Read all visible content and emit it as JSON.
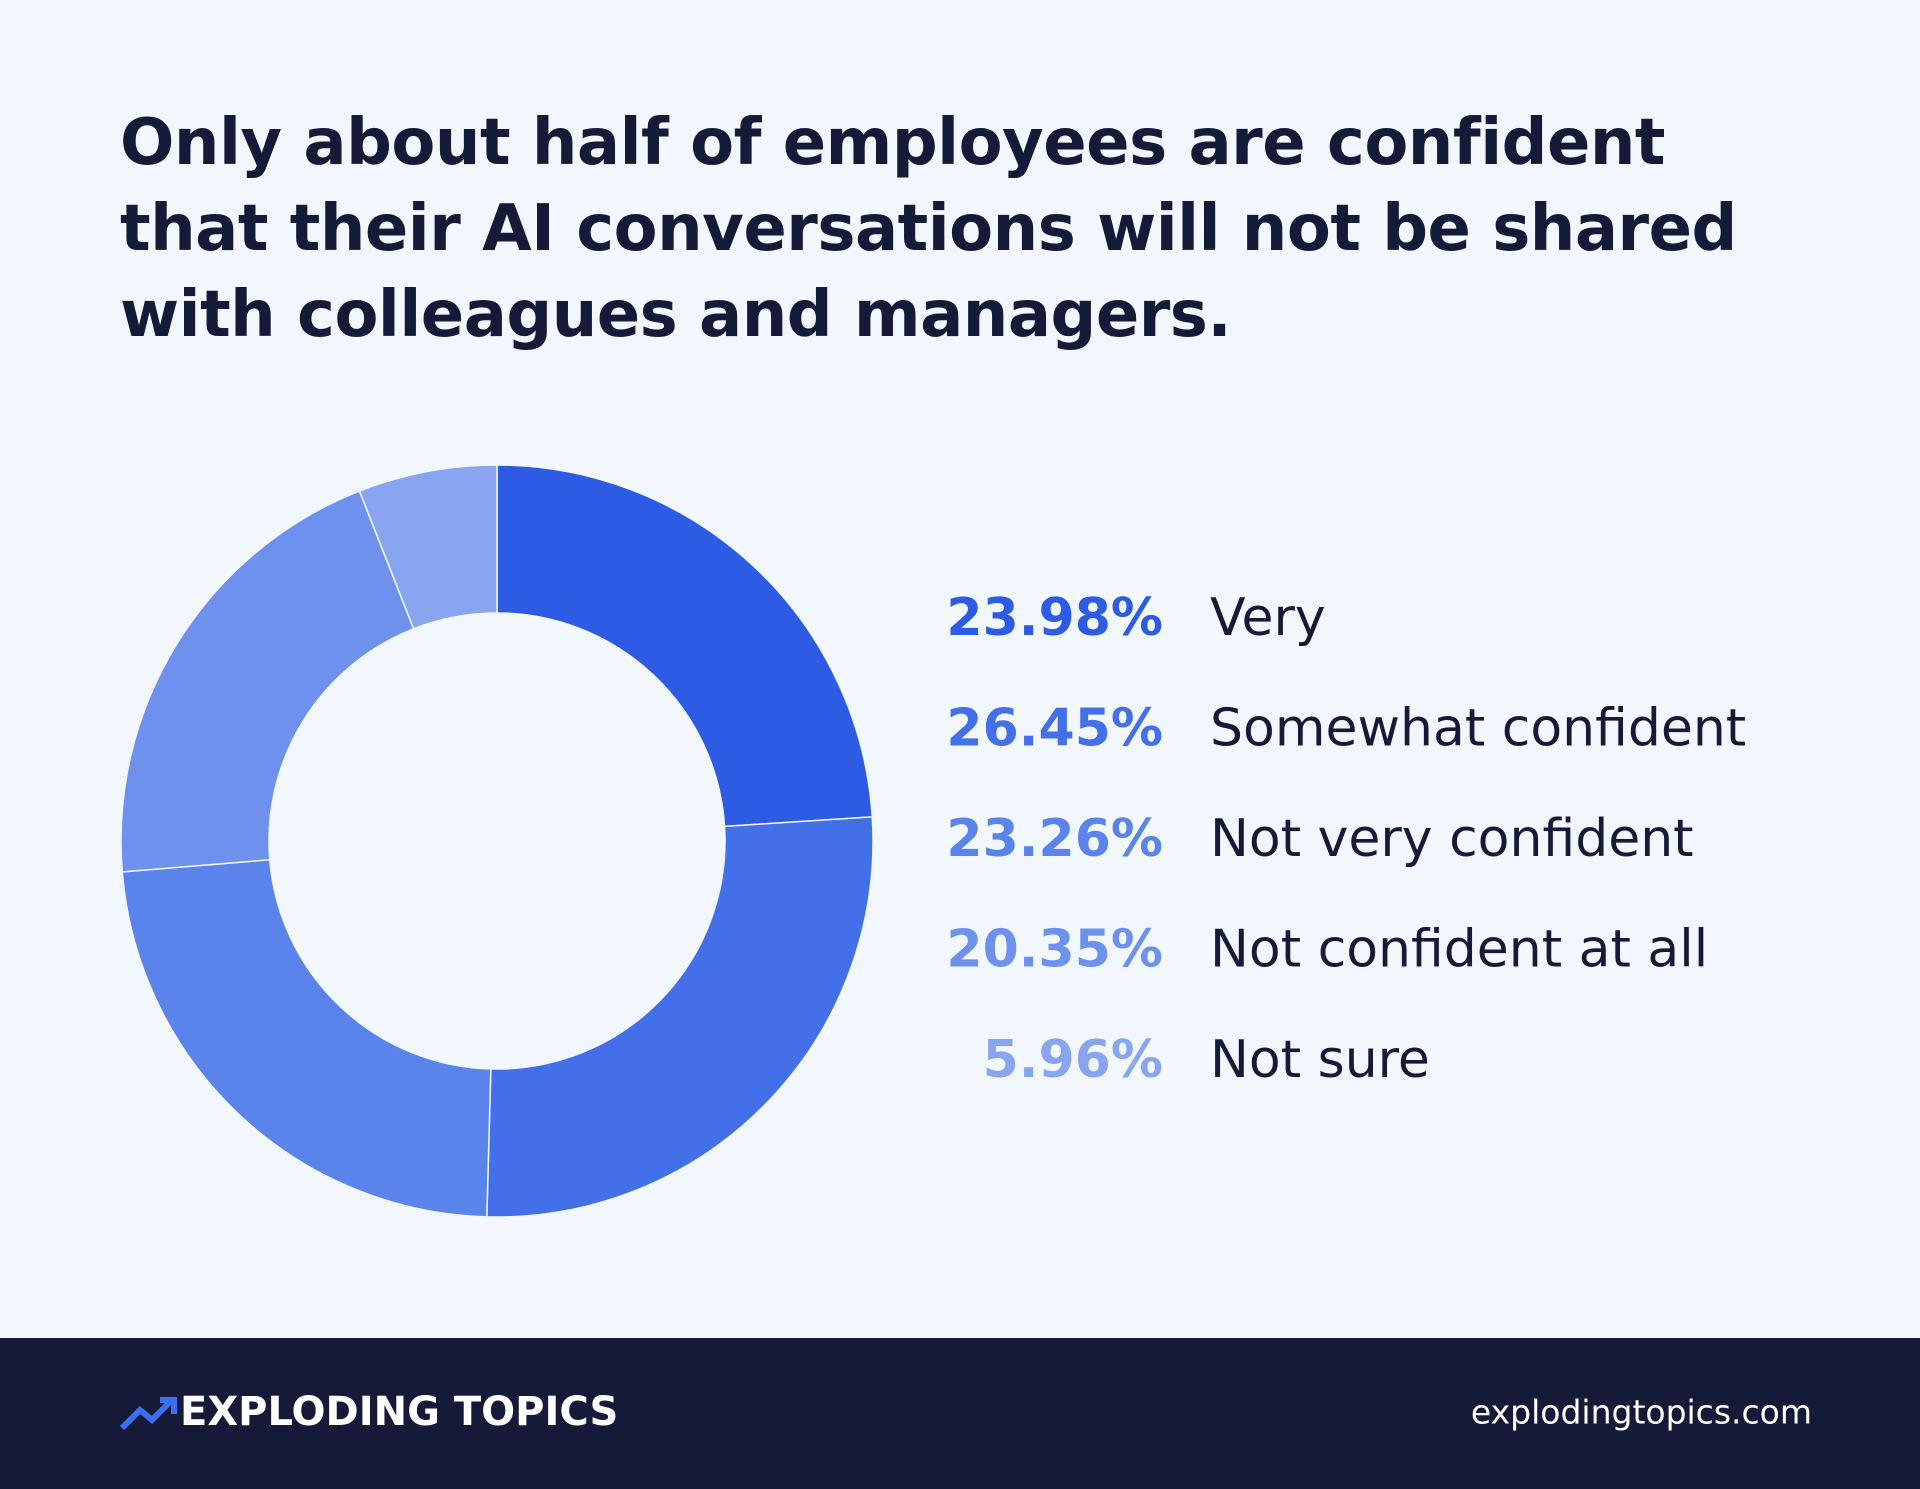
{
  "chart_data": {
    "type": "pie",
    "title": "Only about half of employees are confident that their AI conversations will not be shared with colleagues and managers.",
    "categories": [
      "Very",
      "Somewhat confident",
      "Not very confident",
      "Not confident at all",
      "Not sure"
    ],
    "values": [
      23.98,
      26.45,
      23.26,
      20.35,
      5.96
    ],
    "value_labels": [
      "23.98%",
      "26.45%",
      "23.26%",
      "20.35%",
      "5.96%"
    ],
    "colors": [
      "#2d5be3",
      "#436fe8",
      "#5a83ec",
      "#6e91ee",
      "#8aa5f0"
    ],
    "donut": true
  },
  "footer": {
    "brand": "EXPLODING TOPICS",
    "url": "explodingtopics.com"
  }
}
